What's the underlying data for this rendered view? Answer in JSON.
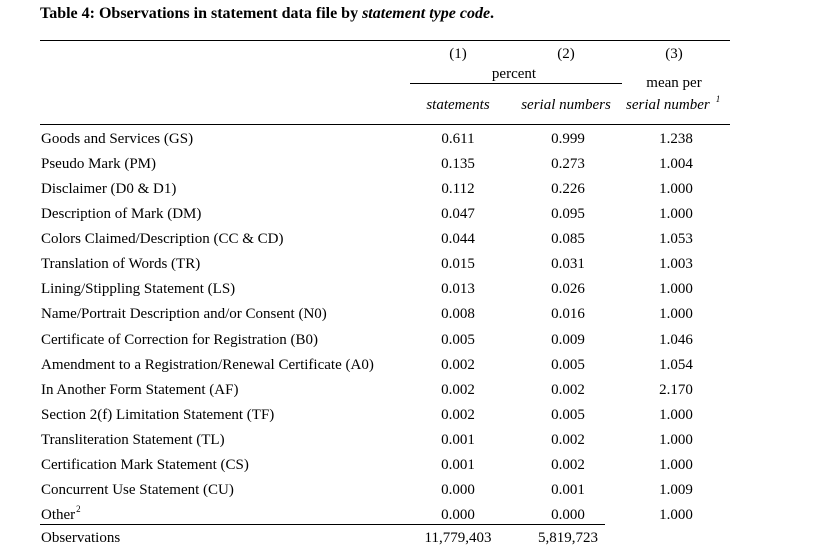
{
  "title": {
    "main": "Table 4: Observations in statement data file by ",
    "italic": "statement type code",
    "end": "."
  },
  "header": {
    "col1_num": "(1)",
    "col2_num": "(2)",
    "col3_num": "(3)",
    "group_label": "percent",
    "col3_label": "mean per",
    "col1_label": "statements",
    "col2_label": "serial numbers",
    "col3_label2": "serial number",
    "col3_sup": "1"
  },
  "rows": [
    {
      "label": "Goods and Services (GS)",
      "c1": "0.611",
      "c2": "0.999",
      "c3": "1.238"
    },
    {
      "label": "Pseudo Mark (PM)",
      "c1": "0.135",
      "c2": "0.273",
      "c3": "1.004"
    },
    {
      "label": "Disclaimer (D0 & D1)",
      "c1": "0.112",
      "c2": "0.226",
      "c3": "1.000"
    },
    {
      "label": "Description of Mark (DM)",
      "c1": "0.047",
      "c2": "0.095",
      "c3": "1.000"
    },
    {
      "label": "Colors Claimed/Description (CC & CD)",
      "c1": "0.044",
      "c2": "0.085",
      "c3": "1.053"
    },
    {
      "label": "Translation of Words (TR)",
      "c1": "0.015",
      "c2": "0.031",
      "c3": "1.003"
    },
    {
      "label": "Lining/Stippling Statement (LS)",
      "c1": "0.013",
      "c2": "0.026",
      "c3": "1.000"
    },
    {
      "label": "Name/Portrait Description and/or Consent (N0)",
      "c1": "0.008",
      "c2": "0.016",
      "c3": "1.000"
    },
    {
      "label": "Certificate of Correction for Registration (B0)",
      "c1": "0.005",
      "c2": "0.009",
      "c3": "1.046"
    },
    {
      "label": "Amendment to a Registration/Renewal Certificate (A0)",
      "c1": "0.002",
      "c2": "0.005",
      "c3": "1.054"
    },
    {
      "label": "In Another Form Statement (AF)",
      "c1": "0.002",
      "c2": "0.002",
      "c3": "2.170"
    },
    {
      "label": "Section 2(f) Limitation Statement (TF)",
      "c1": "0.002",
      "c2": "0.005",
      "c3": "1.000"
    },
    {
      "label": "Transliteration Statement (TL)",
      "c1": "0.001",
      "c2": "0.002",
      "c3": "1.000"
    },
    {
      "label": "Certification Mark Statement (CS)",
      "c1": "0.001",
      "c2": "0.002",
      "c3": "1.000"
    },
    {
      "label": "Concurrent Use Statement (CU)",
      "c1": "0.000",
      "c2": "0.001",
      "c3": "1.009"
    },
    {
      "label": "Other",
      "label_sup": "2",
      "c1": "0.000",
      "c2": "0.000",
      "c3": "1.000"
    }
  ],
  "observations": {
    "label": "Observations",
    "c1": "11,779,403",
    "c2": "5,819,723"
  }
}
